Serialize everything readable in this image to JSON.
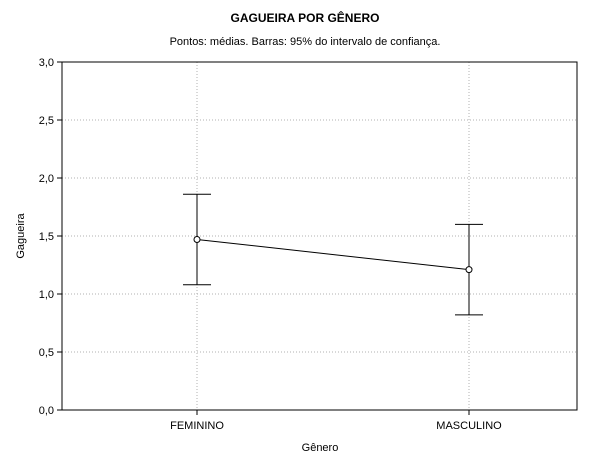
{
  "chart_data": {
    "type": "line",
    "title": "GAGUEIRA POR GÊNERO",
    "subtitle": "Pontos: médias. Barras: 95% do intervalo de confiança.",
    "xlabel": "Gênero",
    "ylabel": "Gagueira",
    "categories": [
      "FEMININO",
      "MASCULINO"
    ],
    "series": [
      {
        "values": [
          1.47,
          1.21
        ],
        "ci_lower": [
          1.08,
          0.82
        ],
        "ci_upper": [
          1.86,
          1.6
        ]
      }
    ],
    "ylim": [
      0.0,
      3.0
    ],
    "yticks": [
      "0,0",
      "0,5",
      "1,0",
      "1,5",
      "2,0",
      "2,5",
      "3,0"
    ],
    "ytick_values": [
      0.0,
      0.5,
      1.0,
      1.5,
      2.0,
      2.5,
      3.0
    ],
    "grid": true,
    "colors": {
      "line": "#000000",
      "marker_fill": "#ffffff",
      "grid": "#b0b0b0"
    }
  }
}
